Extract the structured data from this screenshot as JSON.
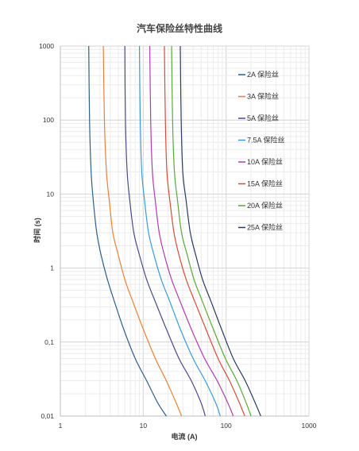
{
  "chart_data": {
    "type": "line",
    "title": "汽车保险丝特性曲线",
    "xlabel": "电流 (A)",
    "ylabel": "时间 (s)",
    "x_scale": "log",
    "y_scale": "log",
    "xlim": [
      1,
      1000
    ],
    "ylim": [
      0.01,
      1000
    ],
    "x_ticks": [
      "1",
      "10",
      "100",
      "1000"
    ],
    "y_ticks": [
      "0,01",
      "0,1",
      "1",
      "10",
      "100",
      "1000"
    ],
    "grid": true,
    "legend_position": "top-right",
    "series": [
      {
        "name": "2A 保险丝",
        "color": "#2e5f8a",
        "x": [
          2.2,
          2.25,
          2.35,
          2.5,
          2.75,
          3.1,
          3.7,
          4.5,
          5.8,
          8,
          11,
          15,
          19
        ],
        "y": [
          1000,
          100,
          20,
          8,
          3,
          1.5,
          0.7,
          0.35,
          0.15,
          0.06,
          0.03,
          0.015,
          0.01
        ]
      },
      {
        "name": "3A 保险丝",
        "color": "#e8803a",
        "x": [
          3.3,
          3.4,
          3.6,
          3.9,
          4.3,
          5,
          6,
          7.5,
          10,
          14,
          19,
          25,
          29
        ],
        "y": [
          1000,
          100,
          20,
          8,
          3,
          1.5,
          0.7,
          0.35,
          0.15,
          0.06,
          0.03,
          0.015,
          0.01
        ]
      },
      {
        "name": "5A 保险丝",
        "color": "#4a4a8a",
        "x": [
          6,
          6.1,
          6.4,
          6.9,
          7.7,
          9,
          11,
          14,
          19,
          27,
          38,
          50,
          56
        ],
        "y": [
          1000,
          100,
          20,
          8,
          3,
          1.5,
          0.7,
          0.35,
          0.15,
          0.06,
          0.03,
          0.015,
          0.01
        ]
      },
      {
        "name": "7.5A 保险丝",
        "color": "#3a9ad9",
        "x": [
          9,
          9.2,
          9.6,
          10.4,
          11.6,
          13.5,
          16.5,
          21,
          28,
          40,
          56,
          75,
          85
        ],
        "y": [
          1000,
          100,
          20,
          8,
          3,
          1.5,
          0.7,
          0.35,
          0.15,
          0.06,
          0.03,
          0.015,
          0.01
        ]
      },
      {
        "name": "10A 保险丝",
        "color": "#b03cb0",
        "x": [
          12,
          12.3,
          12.9,
          14,
          15.6,
          18,
          22,
          28,
          38,
          55,
          78,
          105,
          122
        ],
        "y": [
          1000,
          100,
          20,
          8,
          3,
          1.5,
          0.7,
          0.35,
          0.15,
          0.06,
          0.03,
          0.015,
          0.01
        ]
      },
      {
        "name": "15A 保险丝",
        "color": "#d94a3a",
        "x": [
          18,
          18.5,
          19.3,
          21,
          23.5,
          27,
          33,
          42,
          57,
          80,
          110,
          145,
          168
        ],
        "y": [
          1000,
          100,
          20,
          8,
          3,
          1.5,
          0.7,
          0.35,
          0.15,
          0.06,
          0.03,
          0.015,
          0.01
        ]
      },
      {
        "name": "20A 保险丝",
        "color": "#5aa83a",
        "x": [
          22,
          22.6,
          23.8,
          26,
          29,
          34,
          41,
          52,
          70,
          98,
          135,
          175,
          200
        ],
        "y": [
          1000,
          100,
          20,
          8,
          3,
          1.5,
          0.7,
          0.35,
          0.15,
          0.06,
          0.03,
          0.015,
          0.01
        ]
      },
      {
        "name": "25A 保险丝",
        "color": "#2a3a5e",
        "x": [
          28,
          28.7,
          30,
          33,
          37,
          43,
          52,
          66,
          88,
          122,
          170,
          225,
          262
        ],
        "y": [
          1000,
          100,
          20,
          8,
          3,
          1.5,
          0.7,
          0.35,
          0.15,
          0.06,
          0.03,
          0.015,
          0.01
        ]
      }
    ]
  }
}
